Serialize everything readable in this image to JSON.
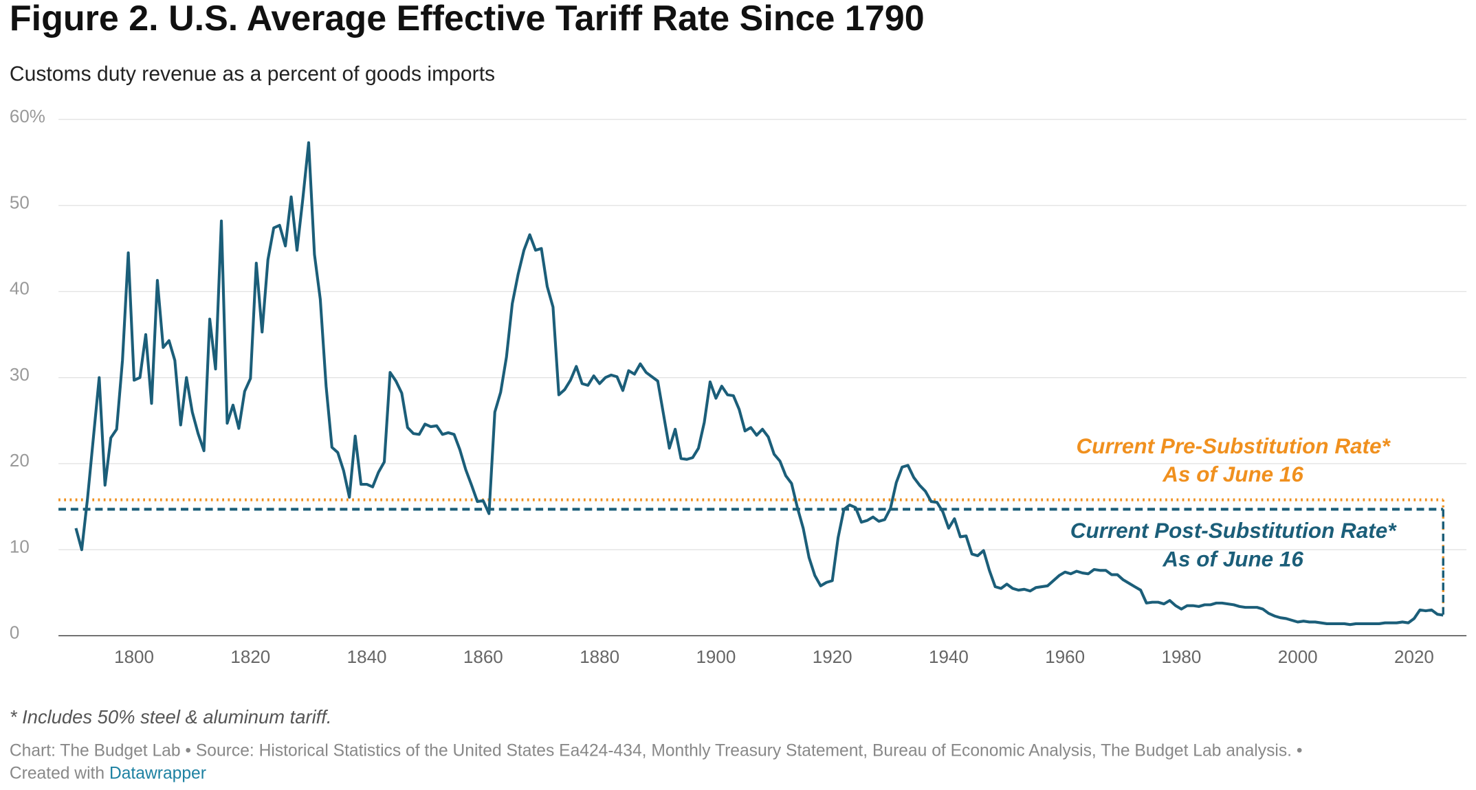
{
  "chart_data": {
    "type": "line",
    "title": "Figure 2. U.S. Average Effective Tariff Rate Since 1790",
    "subtitle": "Customs duty revenue as a percent of goods imports",
    "color": "#1b5e79",
    "x": [
      1790,
      1791,
      1792,
      1793,
      1794,
      1795,
      1796,
      1797,
      1798,
      1799,
      1800,
      1801,
      1802,
      1803,
      1804,
      1805,
      1806,
      1807,
      1808,
      1809,
      1810,
      1811,
      1812,
      1813,
      1814,
      1815,
      1816,
      1817,
      1818,
      1819,
      1820,
      1821,
      1822,
      1823,
      1824,
      1825,
      1826,
      1827,
      1828,
      1829,
      1830,
      1831,
      1832,
      1833,
      1834,
      1835,
      1836,
      1837,
      1838,
      1839,
      1840,
      1841,
      1842,
      1843,
      1844,
      1845,
      1846,
      1847,
      1848,
      1849,
      1850,
      1851,
      1852,
      1853,
      1854,
      1855,
      1856,
      1857,
      1858,
      1859,
      1860,
      1861,
      1862,
      1863,
      1864,
      1865,
      1866,
      1867,
      1868,
      1869,
      1870,
      1871,
      1872,
      1873,
      1874,
      1875,
      1876,
      1877,
      1878,
      1879,
      1880,
      1881,
      1882,
      1883,
      1884,
      1885,
      1886,
      1887,
      1888,
      1889,
      1890,
      1891,
      1892,
      1893,
      1894,
      1895,
      1896,
      1897,
      1898,
      1899,
      1900,
      1901,
      1902,
      1903,
      1904,
      1905,
      1906,
      1907,
      1908,
      1909,
      1910,
      1911,
      1912,
      1913,
      1914,
      1915,
      1916,
      1917,
      1918,
      1919,
      1920,
      1921,
      1922,
      1923,
      1924,
      1925,
      1926,
      1927,
      1928,
      1929,
      1930,
      1931,
      1932,
      1933,
      1934,
      1935,
      1936,
      1937,
      1938,
      1939,
      1940,
      1941,
      1942,
      1943,
      1944,
      1945,
      1946,
      1947,
      1948,
      1949,
      1950,
      1951,
      1952,
      1953,
      1954,
      1955,
      1956,
      1957,
      1958,
      1959,
      1960,
      1961,
      1962,
      1963,
      1964,
      1965,
      1966,
      1967,
      1968,
      1969,
      1970,
      1971,
      1972,
      1973,
      1974,
      1975,
      1976,
      1977,
      1978,
      1979,
      1980,
      1981,
      1982,
      1983,
      1984,
      1985,
      1986,
      1987,
      1988,
      1989,
      1990,
      1991,
      1992,
      1993,
      1994,
      1995,
      1996,
      1997,
      1998,
      1999,
      2000,
      2001,
      2002,
      2003,
      2004,
      2005,
      2006,
      2007,
      2008,
      2009,
      2010,
      2011,
      2012,
      2013,
      2014,
      2015,
      2016,
      2017,
      2018,
      2019,
      2020,
      2021,
      2022,
      2023,
      2024,
      2025
    ],
    "values": [
      12.5,
      10,
      16,
      23,
      30,
      17.5,
      23,
      24,
      32,
      44.5,
      29.7,
      30,
      35,
      27,
      41.3,
      33.5,
      34.3,
      32,
      24.5,
      30,
      26,
      23.5,
      21.5,
      36.8,
      31,
      48.2,
      24.7,
      26.8,
      24.1,
      28.4,
      29.9,
      43.3,
      35.3,
      43.7,
      47.4,
      47.7,
      45.3,
      51,
      44.8,
      50.8,
      57.3,
      44.3,
      39.1,
      29,
      21.9,
      21.3,
      19.2,
      16.1,
      23.2,
      17.6,
      17.6,
      17.3,
      19,
      20.2,
      30.6,
      29.6,
      28.2,
      24.2,
      23.5,
      23.4,
      24.6,
      24.3,
      24.4,
      23.4,
      23.6,
      23.4,
      21.6,
      19.3,
      17.5,
      15.6,
      15.7,
      14.2,
      26,
      28.3,
      32.4,
      38.6,
      42,
      44.8,
      46.6,
      44.8,
      45,
      40.6,
      38.2,
      28,
      28.6,
      29.7,
      31.3,
      29.3,
      29.1,
      30.2,
      29.3,
      30,
      30.3,
      30.1,
      28.5,
      30.8,
      30.4,
      31.6,
      30.6,
      30.1,
      29.6,
      25.7,
      21.8,
      24,
      20.6,
      20.5,
      20.7,
      21.8,
      24.8,
      29.5,
      27.6,
      29,
      28,
      27.9,
      26.3,
      23.8,
      24.2,
      23.3,
      24,
      23.1,
      21.1,
      20.3,
      18.6,
      17.7,
      14.9,
      12.5,
      9.1,
      7,
      5.8,
      6.2,
      6.4,
      11.4,
      14.7,
      15.2,
      14.9,
      13.2,
      13.4,
      13.8,
      13.3,
      13.5,
      14.8,
      17.8,
      19.6,
      19.8,
      18.4,
      17.5,
      16.8,
      15.6,
      15.5,
      14.4,
      12.5,
      13.6,
      11.5,
      11.6,
      9.5,
      9.3,
      9.9,
      7.6,
      5.7,
      5.5,
      6,
      5.5,
      5.3,
      5.4,
      5.2,
      5.6,
      5.7,
      5.8,
      6.4,
      7,
      7.4,
      7.2,
      7.5,
      7.3,
      7.2,
      7.7,
      7.6,
      7.6,
      7.1,
      7.1,
      6.5,
      6.1,
      5.7,
      5.3,
      3.8,
      3.9,
      3.9,
      3.7,
      4.1,
      3.5,
      3.1,
      3.5,
      3.5,
      3.4,
      3.6,
      3.6,
      3.8,
      3.8,
      3.7,
      3.6,
      3.4,
      3.3,
      3.3,
      3.3,
      3.1,
      2.6,
      2.3,
      2.1,
      2,
      1.8,
      1.6,
      1.7,
      1.6,
      1.6,
      1.5,
      1.4,
      1.4,
      1.4,
      1.4,
      1.3,
      1.4,
      1.4,
      1.4,
      1.4,
      1.4,
      1.5,
      1.5,
      1.5,
      1.6,
      1.5,
      2,
      3,
      2.9,
      3,
      2.5,
      2.4
    ],
    "xlim": [
      1787,
      2029
    ],
    "ylim": [
      0,
      60
    ],
    "xticks": [
      1800,
      1820,
      1840,
      1860,
      1880,
      1900,
      1920,
      1940,
      1960,
      1980,
      2000,
      2020
    ],
    "yticks": [
      0,
      10,
      20,
      30,
      40,
      50,
      {
        "value": 60,
        "label": "60%"
      }
    ],
    "grid": true,
    "reference_lines": [
      {
        "value": 15.8,
        "color": "#f0901e",
        "style": "dotted",
        "label": [
          "Current Pre-Substitution Rate*",
          "As of June 16"
        ]
      },
      {
        "value": 14.7,
        "color": "#1b5e79",
        "style": "dashed",
        "label": [
          "Current Post-Substitution Rate*",
          "As of June 16"
        ]
      }
    ],
    "note": "* Includes 50% steel & aluminum tariff.",
    "source": "Chart: The Budget Lab • Source: Historical Statistics of the United States Ea424-434, Monthly Treasury Statement, Bureau of Economic Analysis, The Budget Lab analysis. •",
    "credit": "Created with",
    "credit_link": "Datawrapper"
  }
}
